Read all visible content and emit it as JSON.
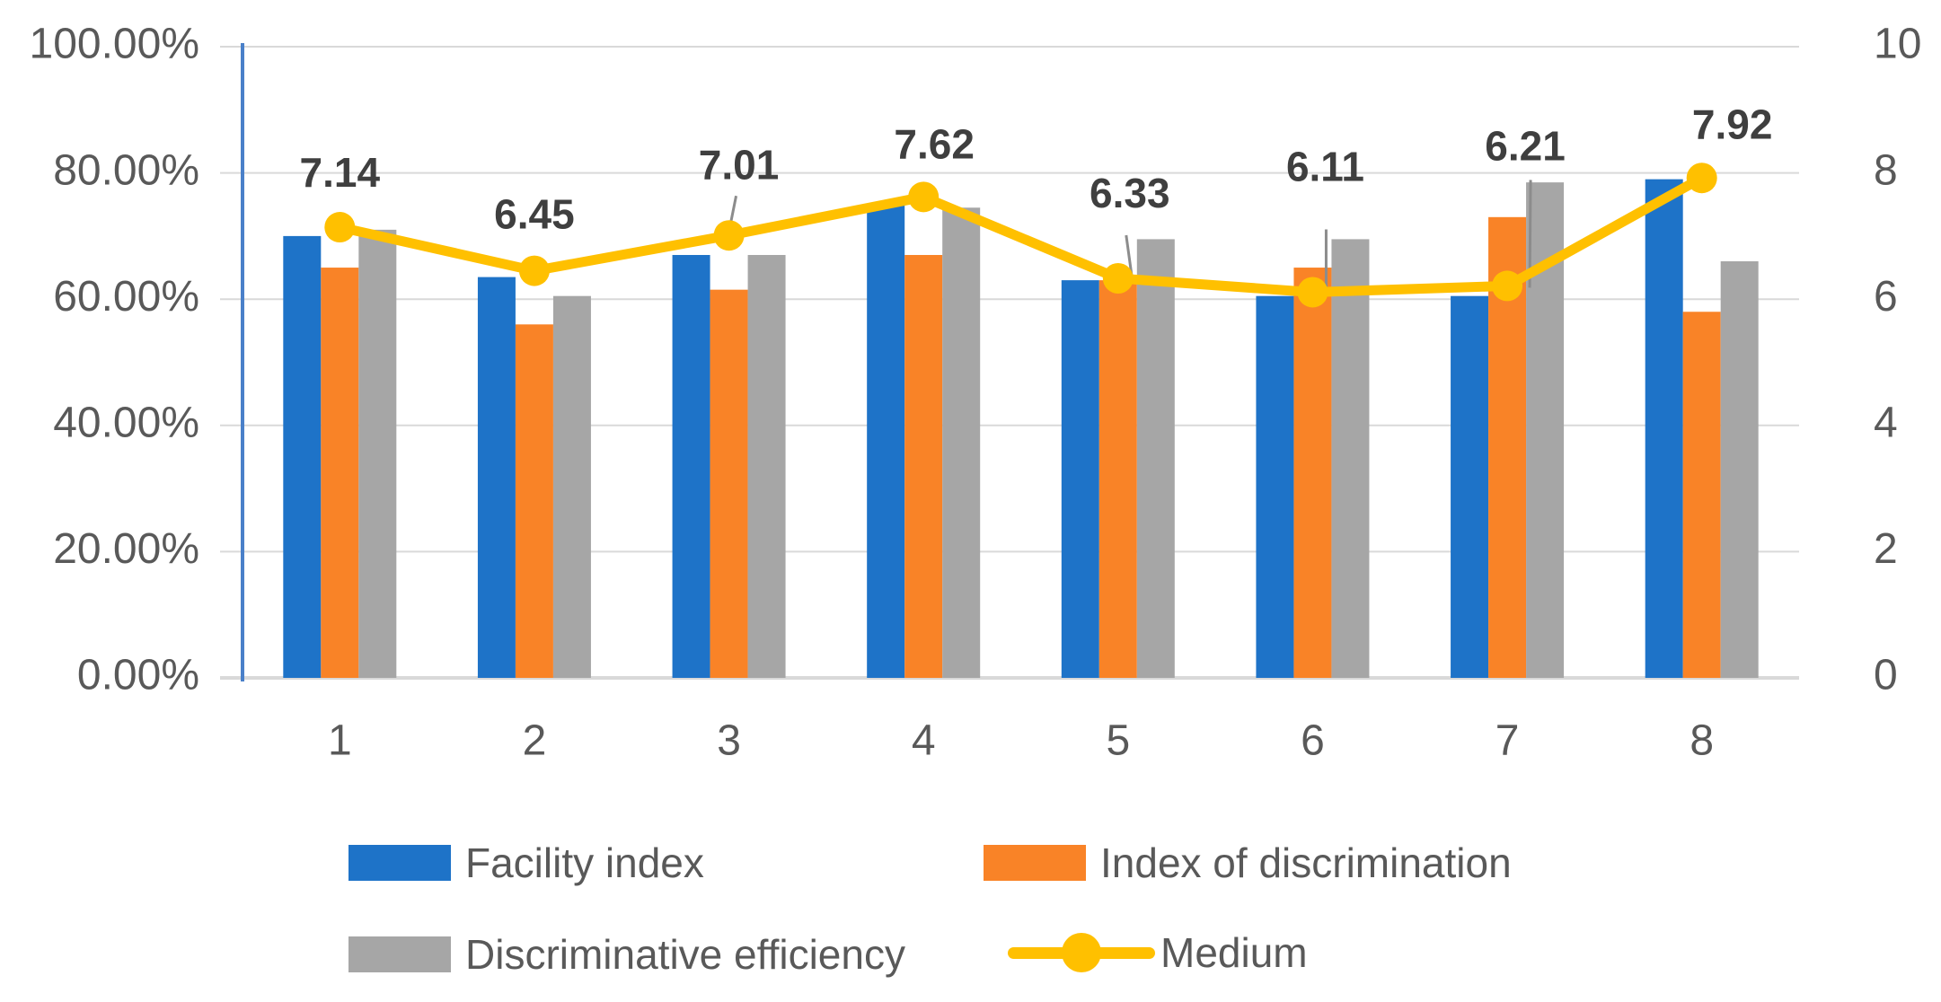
{
  "chart_data": {
    "type": "bar",
    "subtype": "grouped-bar-with-line-combo",
    "categories": [
      "1",
      "2",
      "3",
      "4",
      "5",
      "6",
      "7",
      "8"
    ],
    "series": [
      {
        "name": "Facility index",
        "type": "bar",
        "axis": "left",
        "color": "#1E73C8",
        "values": [
          70,
          63.5,
          67,
          75,
          63,
          60.5,
          60.5,
          79
        ],
        "unit": "percent"
      },
      {
        "name": "Index of discrimination",
        "type": "bar",
        "axis": "left",
        "color": "#F98327",
        "values": [
          65,
          56,
          61.5,
          67,
          63,
          65,
          73,
          58
        ],
        "unit": "percent"
      },
      {
        "name": "Discriminative efficiency",
        "type": "bar",
        "axis": "left",
        "color": "#A6A6A6",
        "values": [
          71,
          60.5,
          67,
          74.5,
          69.5,
          69.5,
          78.5,
          66
        ],
        "unit": "percent"
      },
      {
        "name": "Medium",
        "type": "line",
        "axis": "right",
        "color": "#FFC000",
        "values": [
          7.14,
          6.45,
          7.01,
          7.62,
          6.33,
          6.11,
          6.21,
          7.92
        ],
        "data_labels": [
          "7.14",
          "6.45",
          "7.01",
          "7.62",
          "6.33",
          "6.11",
          "6.21",
          "7.92"
        ]
      }
    ],
    "left_axis": {
      "min": 0,
      "max": 100,
      "tick_labels": [
        "100.00%",
        "80.00%",
        "60.00%",
        "40.00%",
        "20.00%",
        "0.00%"
      ]
    },
    "right_axis": {
      "min": 0,
      "max": 10,
      "tick_labels": [
        "10",
        "8",
        "6",
        "4",
        "2",
        "0"
      ]
    },
    "grid": true,
    "legend_position": "bottom",
    "title": ""
  },
  "colors": {
    "axis_line": "#4A80C9",
    "gridline": "#D9D9D9",
    "baseline": "#D9D9D9",
    "tick_text": "#595959",
    "category_text": "#595959",
    "data_label_text": "#3F3F3F",
    "leader_line": "#8C8C8C",
    "background": "#FFFFFF"
  }
}
